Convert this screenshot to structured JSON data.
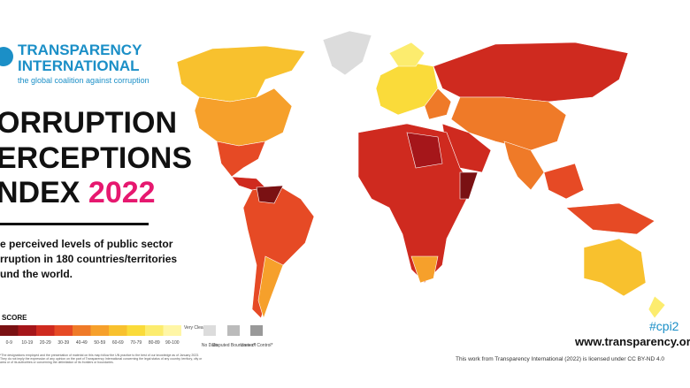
{
  "header": {
    "org_line1": "TRANSPARENCY",
    "org_line2": "INTERNATIONAL",
    "tagline": "the global coalition against corruption"
  },
  "title": {
    "line1": "ORRUPTION",
    "line2": "ERCEPTIONS",
    "line3": "NDEX",
    "year": "2022"
  },
  "description": [
    "e perceived levels of public sector",
    "rruption in 180 countries/territories",
    "und the world."
  ],
  "legend": {
    "title": "SCORE",
    "items": [
      {
        "label": "0-9",
        "color": "#7a1113"
      },
      {
        "label": "10-19",
        "color": "#a5161a"
      },
      {
        "label": "20-29",
        "color": "#cf2a1f"
      },
      {
        "label": "30-39",
        "color": "#e64a25"
      },
      {
        "label": "40-49",
        "color": "#ef7a28"
      },
      {
        "label": "50-59",
        "color": "#f6a02b"
      },
      {
        "label": "60-69",
        "color": "#f8c12e"
      },
      {
        "label": "70-79",
        "color": "#fadb3a"
      },
      {
        "label": "80-89",
        "color": "#fcec6e"
      },
      {
        "label": "90-100",
        "color": "#fff6a6"
      }
    ],
    "very_clean": "Very Clean",
    "no_data": "No Data",
    "disputed": "Disputed Boundaries*",
    "lines_of_control": "Lines of Control*"
  },
  "disclaimer": "*The designations employed and the presentation of material on this map follow the UN practice to the best of our knowledge as of January 2023. They do not imply the expression of any opinion on the part of Transparency International concerning the legal status of any country, territory, city or area or of its authorities or concerning the delimitation of its frontiers or boundaries.",
  "footer": {
    "hashtag": "#cpi2",
    "url": "www.transparency.org/",
    "license": "This work from Transparency International (2022) is licensed under CC BY-ND 4.0"
  }
}
